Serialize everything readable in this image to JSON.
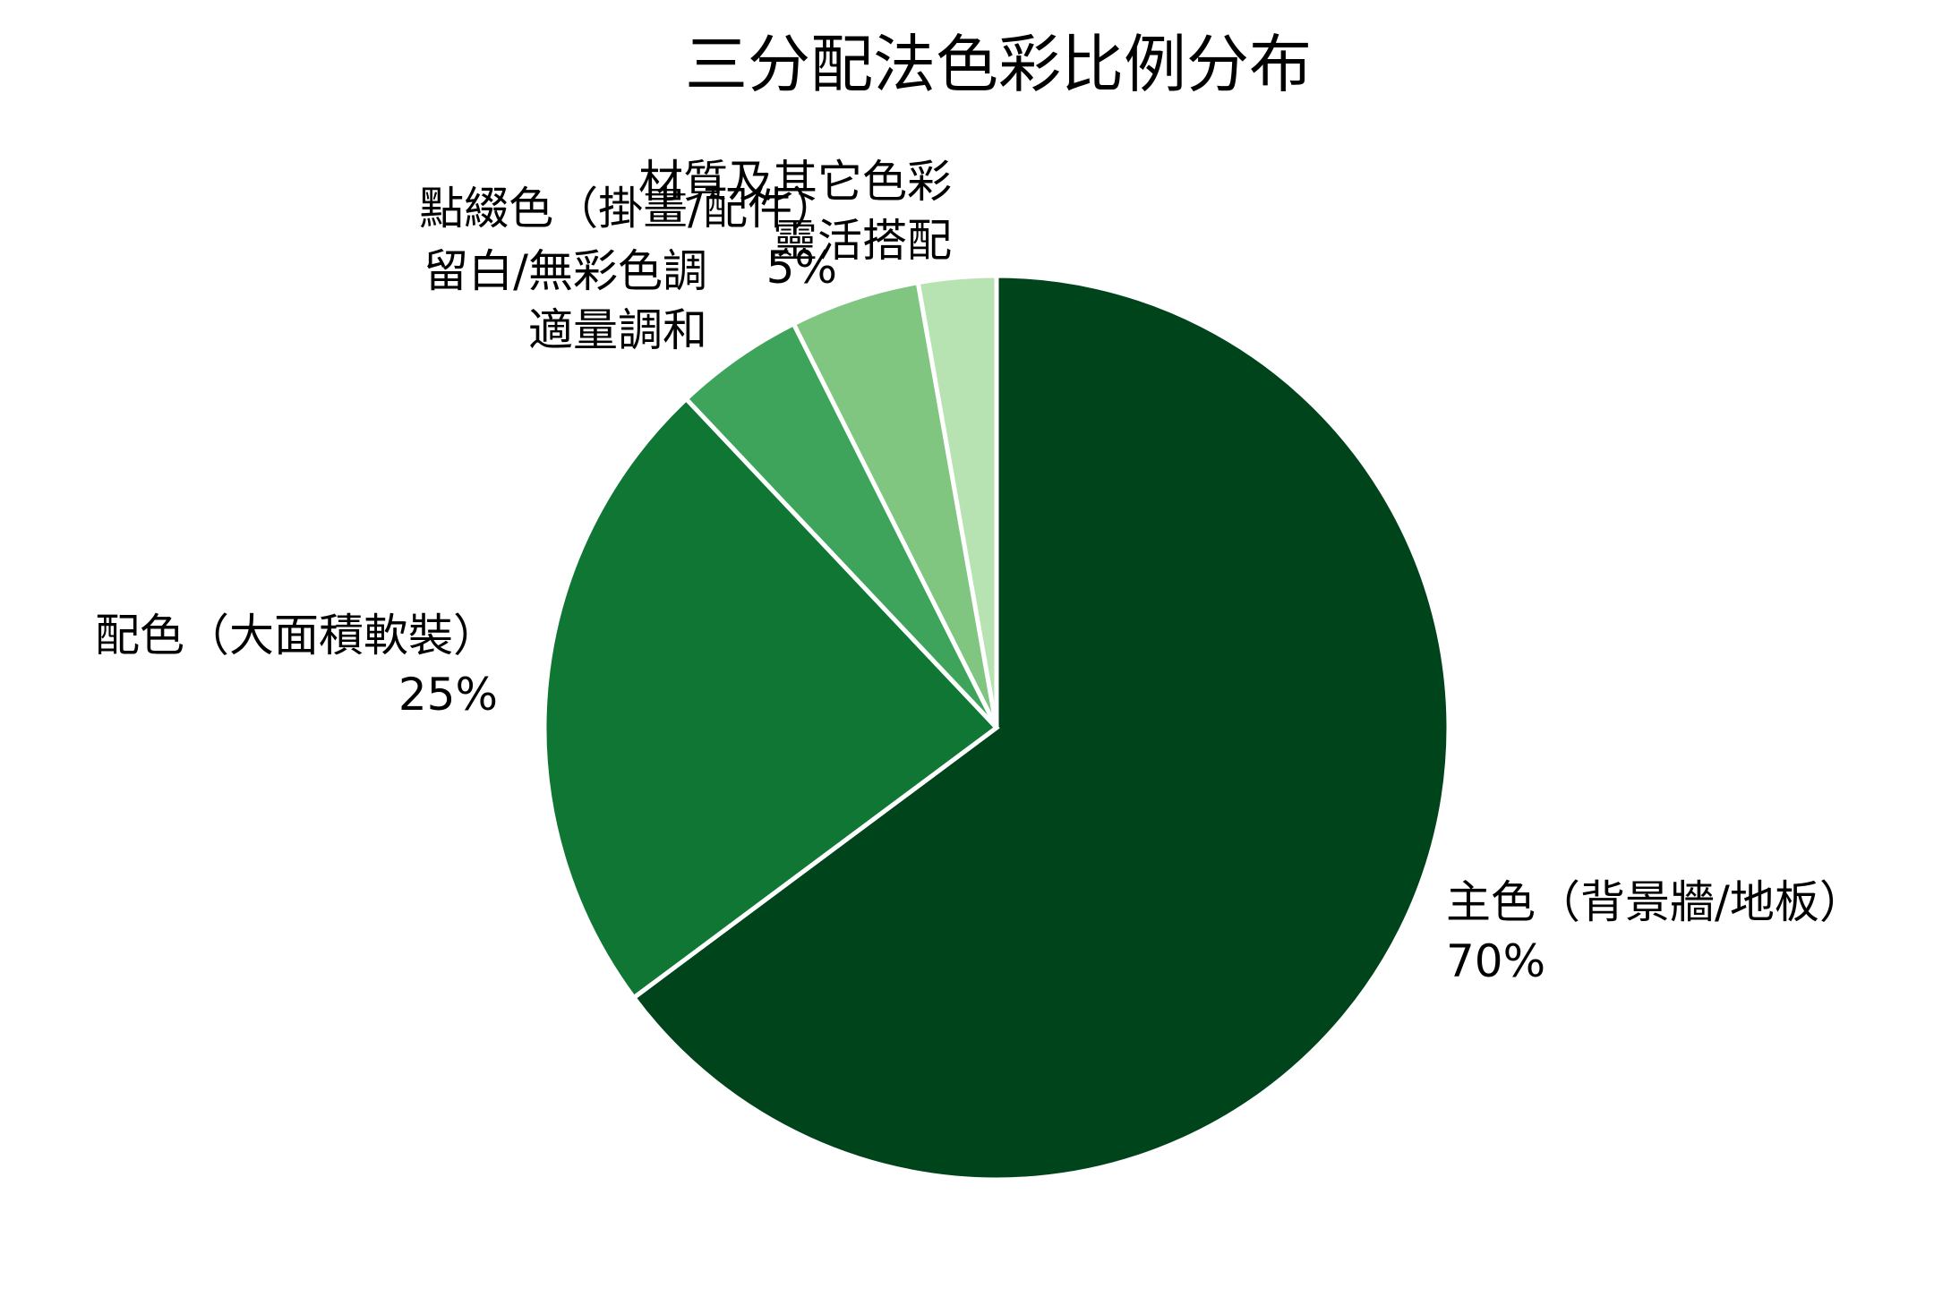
{
  "chart_data": {
    "type": "pie",
    "title": "三分配法色彩比例分布",
    "start_angle": "12 o'clock",
    "direction": "clockwise",
    "slices": [
      {
        "label_lines": [
          "主色（背景牆/地板）",
          "70%"
        ],
        "value": 70,
        "color": "#00441b"
      },
      {
        "label_lines": [
          "配色（大面積軟裝）",
          "25%"
        ],
        "value": 25,
        "color": "#0f7634"
      },
      {
        "label_lines": [
          "留白/無彩色調",
          "適量調和"
        ],
        "value": 5,
        "color": "#3fa45b"
      },
      {
        "label_lines": [
          "點綴色（掛畫/配件）",
          "5%"
        ],
        "value": 5,
        "color": "#80c680"
      },
      {
        "label_lines": [
          "材質及其它色彩",
          "靈活搭配"
        ],
        "value": 3,
        "color": "#b7e2b1"
      }
    ]
  }
}
